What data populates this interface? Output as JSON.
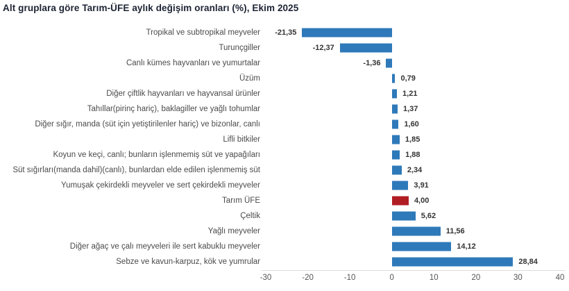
{
  "chart_data": {
    "type": "bar",
    "orientation": "horizontal",
    "title": "Alt gruplara göre Tarım-ÜFE aylık değişim oranları (%), Ekim 2025",
    "categories": [
      "Tropikal ve subtropikal meyveler",
      "Turunçgiller",
      "Canlı kümes hayvanları ve yumurtalar",
      "Üzüm",
      "Diğer çiftlik hayvanları ve hayvansal ürünler",
      "Tahıllar(pirinç hariç), baklagiller ve yağlı tohumlar",
      "Diğer sığır, manda (süt için yetiştirilenler hariç) ve bizonlar, canlı",
      "Lifli bitkiler",
      "Koyun ve keçi, canlı; bunların işlenmemiş süt ve yapağıları",
      "Süt sığırları(manda dahil)(canlı), bunlardan elde edilen işlenmemiş süt",
      "Yumuşak çekirdekli meyveler ve sert çekirdekli meyveler",
      "Tarım ÜFE",
      "Çeltik",
      "Yağlı meyveler",
      "Diğer ağaç ve çalı meyveleri ile sert kabuklu meyveler",
      "Sebze ve kavun-karpuz, kök ve yumrular"
    ],
    "values": [
      -21.35,
      -12.37,
      -1.36,
      0.79,
      1.21,
      1.37,
      1.6,
      1.85,
      1.88,
      2.34,
      3.91,
      4.0,
      5.62,
      11.56,
      14.12,
      28.84
    ],
    "value_labels": [
      "-21,35",
      "-12,37",
      "-1,36",
      "0,79",
      "1,21",
      "1,37",
      "1,60",
      "1,85",
      "1,88",
      "2,34",
      "3,91",
      "4,00",
      "5,62",
      "11,56",
      "14,12",
      "28,84"
    ],
    "highlight_index": 11,
    "xlim": [
      -30,
      40
    ],
    "xticks": [
      -30,
      -20,
      -10,
      0,
      10,
      20,
      30,
      40
    ],
    "grid": false,
    "legend": false,
    "colors": {
      "bar": "#2e79b9",
      "highlight": "#b01e24",
      "axis_line": "#dcdcdc",
      "title_text": "#1c2333",
      "category_text": "#4a4a4a",
      "value_text": "#333333",
      "tick_text": "#555555",
      "background": "#ffffff"
    }
  }
}
